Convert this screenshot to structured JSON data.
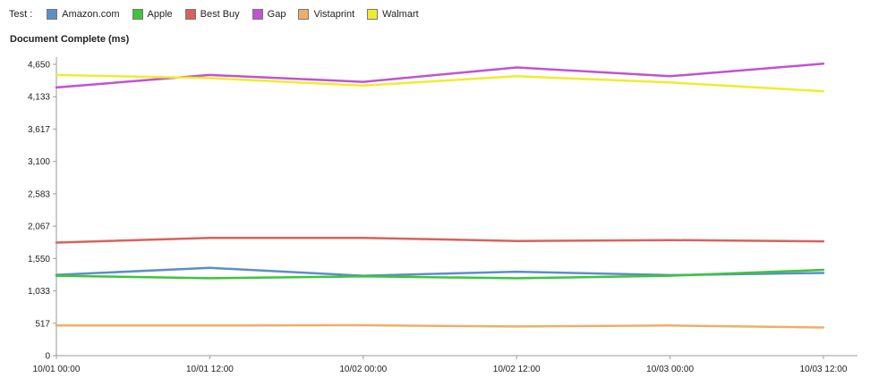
{
  "legend": {
    "title": "Test :",
    "items": [
      {
        "name": "Amazon.com",
        "color": "#5b8fc7"
      },
      {
        "name": "Apple",
        "color": "#3dc43d"
      },
      {
        "name": "Best Buy",
        "color": "#d9625a"
      },
      {
        "name": "Gap",
        "color": "#c152d2"
      },
      {
        "name": "Vistaprint",
        "color": "#f0ad6a"
      },
      {
        "name": "Walmart",
        "color": "#f0ec2d"
      }
    ]
  },
  "chart_data": {
    "type": "line",
    "title": "Document Complete (ms)",
    "xlabel": "",
    "ylabel": "",
    "x": [
      "10/01 00:00",
      "10/01 12:00",
      "10/02 00:00",
      "10/02 12:00",
      "10/03 00:00",
      "10/03 12:00"
    ],
    "ylim": [
      0,
      4650
    ],
    "yticks": [
      "0",
      "517",
      "1,033",
      "1,550",
      "2,067",
      "2,583",
      "3,100",
      "3,617",
      "4,133",
      "4,650"
    ],
    "ytick_values": [
      0,
      517,
      1033,
      1550,
      2067,
      2583,
      3100,
      3617,
      4133,
      4650
    ],
    "grid": false,
    "legend_position": "top",
    "series": [
      {
        "name": "Amazon.com",
        "color": "#5b8fc7",
        "values": [
          1290,
          1400,
          1275,
          1340,
          1285,
          1320
        ]
      },
      {
        "name": "Apple",
        "color": "#3dc43d",
        "values": [
          1275,
          1235,
          1265,
          1235,
          1275,
          1370
        ]
      },
      {
        "name": "Best Buy",
        "color": "#d9625a",
        "values": [
          1805,
          1880,
          1880,
          1830,
          1845,
          1825
        ]
      },
      {
        "name": "Gap",
        "color": "#c152d2",
        "values": [
          4280,
          4480,
          4370,
          4600,
          4460,
          4660
        ]
      },
      {
        "name": "Vistaprint",
        "color": "#f0ad6a",
        "values": [
          480,
          480,
          485,
          465,
          480,
          450
        ]
      },
      {
        "name": "Walmart",
        "color": "#f0ec2d",
        "values": [
          4480,
          4430,
          4310,
          4460,
          4360,
          4220
        ]
      }
    ]
  }
}
